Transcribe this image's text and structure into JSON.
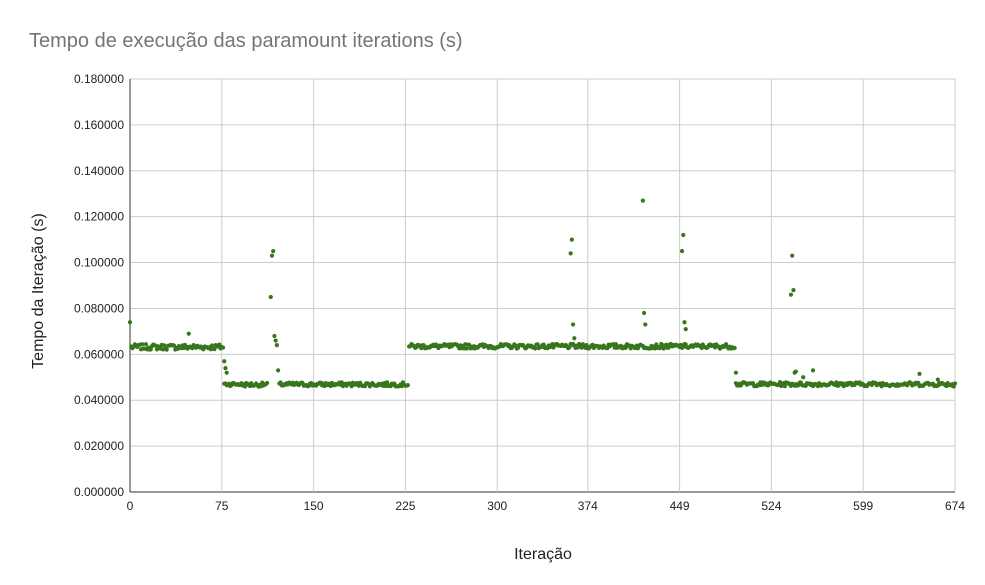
{
  "chart_data": {
    "type": "scatter",
    "title": "Tempo de execução das paramount iterations (s)",
    "xlabel": "Iteração",
    "ylabel": "Tempo da Iteração (s)",
    "xlim": [
      0,
      674
    ],
    "ylim": [
      0,
      0.18
    ],
    "x_ticks": [
      "0",
      "75",
      "150",
      "225",
      "300",
      "374",
      "449",
      "524",
      "599",
      "674"
    ],
    "y_ticks": [
      "0.000000",
      "0.020000",
      "0.040000",
      "0.060000",
      "0.080000",
      "0.100000",
      "0.120000",
      "0.140000",
      "0.160000",
      "0.180000"
    ],
    "grid": true,
    "marker_color": "#38761d",
    "series": [
      {
        "segments": [
          {
            "x_start": 1,
            "x_end": 76,
            "base": 0.0632,
            "jitter": 0.0012
          },
          {
            "x_start": 77,
            "x_end": 90,
            "base": 0.047,
            "jitter": 0.0008
          },
          {
            "x_start": 91,
            "x_end": 112,
            "base": 0.0468,
            "jitter": 0.0009
          },
          {
            "x_start": 122,
            "x_end": 227,
            "base": 0.0469,
            "jitter": 0.0009
          },
          {
            "x_start": 228,
            "x_end": 494,
            "base": 0.0635,
            "jitter": 0.001
          },
          {
            "x_start": 495,
            "x_end": 674,
            "base": 0.047,
            "jitter": 0.0009
          }
        ],
        "points": [
          [
            0,
            0.074
          ],
          [
            48,
            0.069
          ],
          [
            77,
            0.057
          ],
          [
            78,
            0.054
          ],
          [
            79,
            0.052
          ],
          [
            115,
            0.085
          ],
          [
            116,
            0.103
          ],
          [
            117,
            0.105
          ],
          [
            118,
            0.068
          ],
          [
            119,
            0.066
          ],
          [
            120,
            0.064
          ],
          [
            121,
            0.053
          ],
          [
            360,
            0.104
          ],
          [
            361,
            0.11
          ],
          [
            362,
            0.073
          ],
          [
            363,
            0.067
          ],
          [
            419,
            0.127
          ],
          [
            420,
            0.078
          ],
          [
            421,
            0.073
          ],
          [
            451,
            0.105
          ],
          [
            452,
            0.112
          ],
          [
            453,
            0.074
          ],
          [
            454,
            0.071
          ],
          [
            495,
            0.052
          ],
          [
            540,
            0.086
          ],
          [
            541,
            0.103
          ],
          [
            542,
            0.088
          ],
          [
            543,
            0.052
          ],
          [
            544,
            0.0525
          ],
          [
            550,
            0.05
          ],
          [
            558,
            0.053
          ],
          [
            645,
            0.0515
          ],
          [
            660,
            0.049
          ],
          [
            673,
            0.046
          ]
        ]
      }
    ]
  }
}
